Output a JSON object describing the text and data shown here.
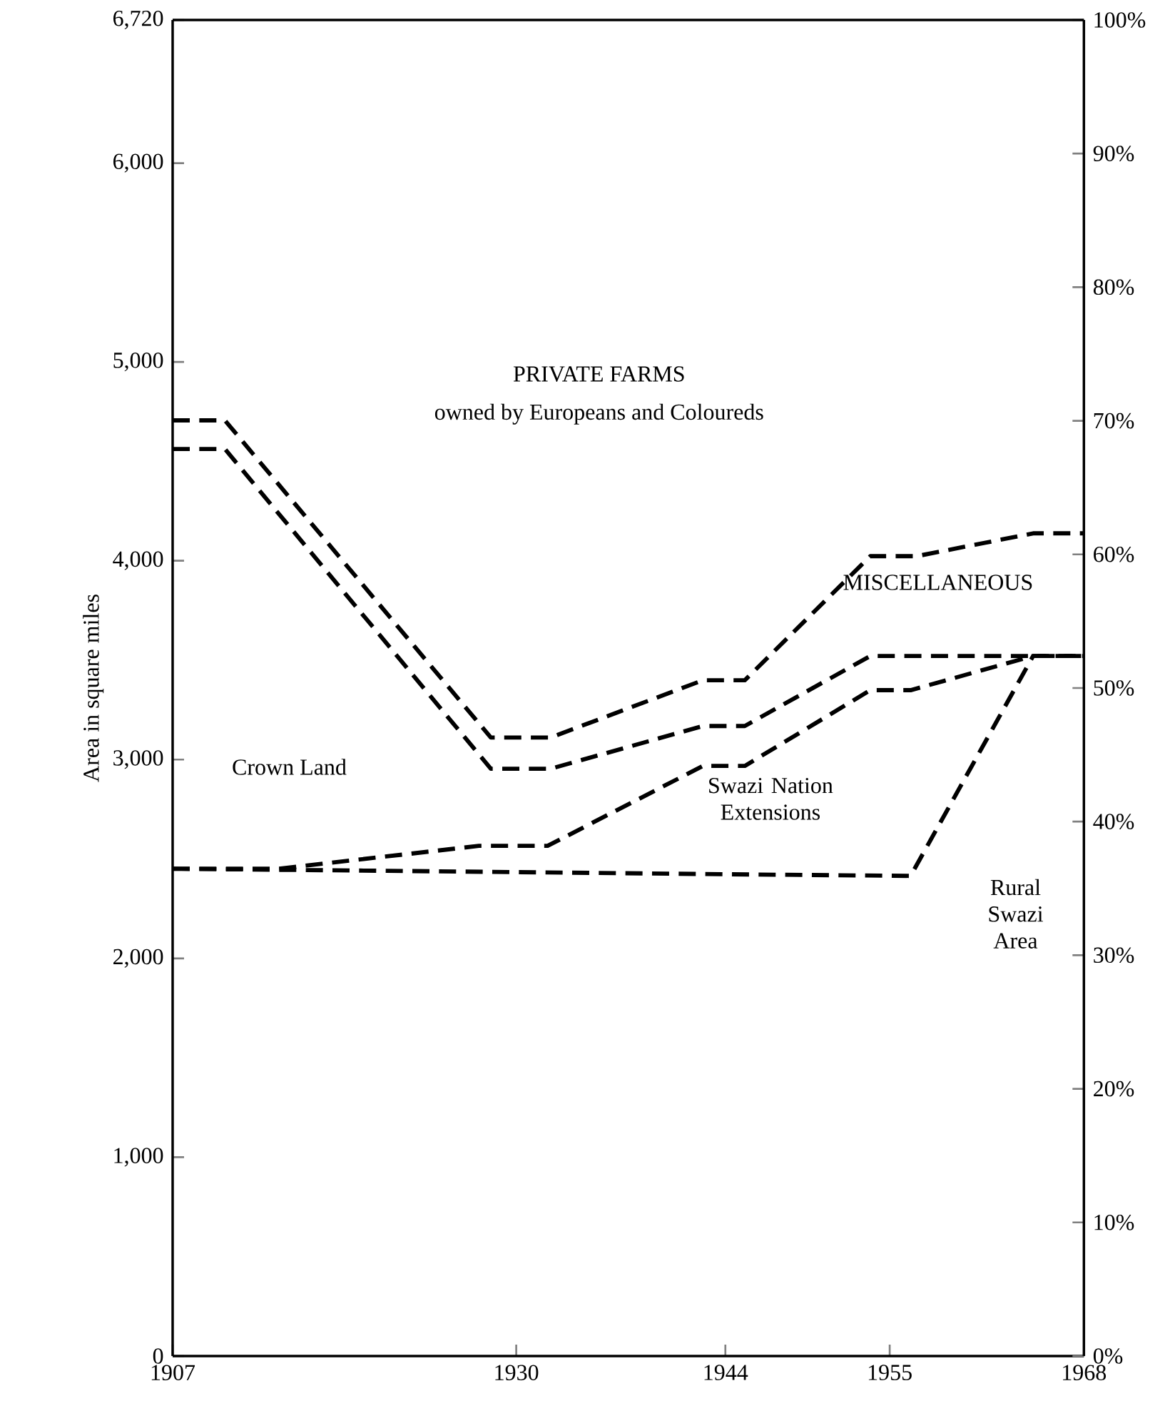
{
  "chart_data": {
    "type": "line",
    "ylabel": "Area in square miles",
    "xlim": [
      1907,
      1968
    ],
    "xticks": [
      1907,
      1930,
      1944,
      1955,
      1968
    ],
    "ylim": [
      0,
      6720
    ],
    "yticks": [
      0,
      {
        "value": 1000,
        "label": "1,000"
      },
      {
        "value": 2000,
        "label": "2,000"
      },
      {
        "value": 3000,
        "label": "3,000"
      },
      {
        "value": 4000,
        "label": "4,000"
      },
      {
        "value": 5000,
        "label": "5,000"
      },
      {
        "value": 6000,
        "label": "6,000"
      },
      {
        "value": 6720,
        "label": "6,720"
      }
    ],
    "y2lim": [
      0,
      100
    ],
    "y2ticks": [
      {
        "value": 0,
        "label": "0%"
      },
      {
        "value": 10,
        "label": "10%"
      },
      {
        "value": 20,
        "label": "20%"
      },
      {
        "value": 30,
        "label": "30%"
      },
      {
        "value": 40,
        "label": "40%"
      },
      {
        "value": 50,
        "label": "50%"
      },
      {
        "value": 60,
        "label": "60%"
      },
      {
        "value": 70,
        "label": "70%"
      },
      {
        "value": 80,
        "label": "80%"
      },
      {
        "value": 90,
        "label": "90%"
      },
      {
        "value": 100,
        "label": "100%"
      }
    ],
    "grid": false,
    "marker": "none",
    "line_style": "dashed",
    "series": [
      {
        "color": "#000000",
        "x": [
          1907,
          1910.5,
          1928.3,
          1932.3,
          1942.5,
          1945.3,
          1953.7,
          1956.8,
          1964.6,
          1968
        ],
        "values": [
          4706,
          4706,
          3111,
          3111,
          3399,
          3399,
          4023,
          4023,
          4138,
          4138
        ]
      },
      {
        "color": "#000000",
        "x": [
          1907,
          1910.5,
          1928.3,
          1932.3,
          1942.5,
          1945.3,
          1953.7,
          1968
        ],
        "values": [
          4562,
          4562,
          2954,
          2954,
          3169,
          3169,
          3521,
          3521
        ]
      },
      {
        "color": "#000000",
        "x": [
          1907,
          1914.1,
          1927.5,
          1932.1,
          1942.5,
          1945.3,
          1953.7,
          1956.4,
          1964.6,
          1968
        ],
        "values": [
          2451,
          2451,
          2566,
          2566,
          2968,
          2968,
          3349,
          3349,
          3521,
          3521
        ]
      },
      {
        "color": "#000000",
        "x": [
          1907,
          1945.8,
          1956.4,
          1964.6,
          1968
        ],
        "values": [
          2451,
          2422,
          2415,
          3521,
          3521
        ]
      }
    ],
    "annotations": [
      "PRIVATE FARMS",
      "owned by Europeans and Coloureds",
      "MISCELLANEOUS",
      "Crown Land",
      "Swazi Nation Extensions",
      "Rural Swazi Area"
    ]
  }
}
